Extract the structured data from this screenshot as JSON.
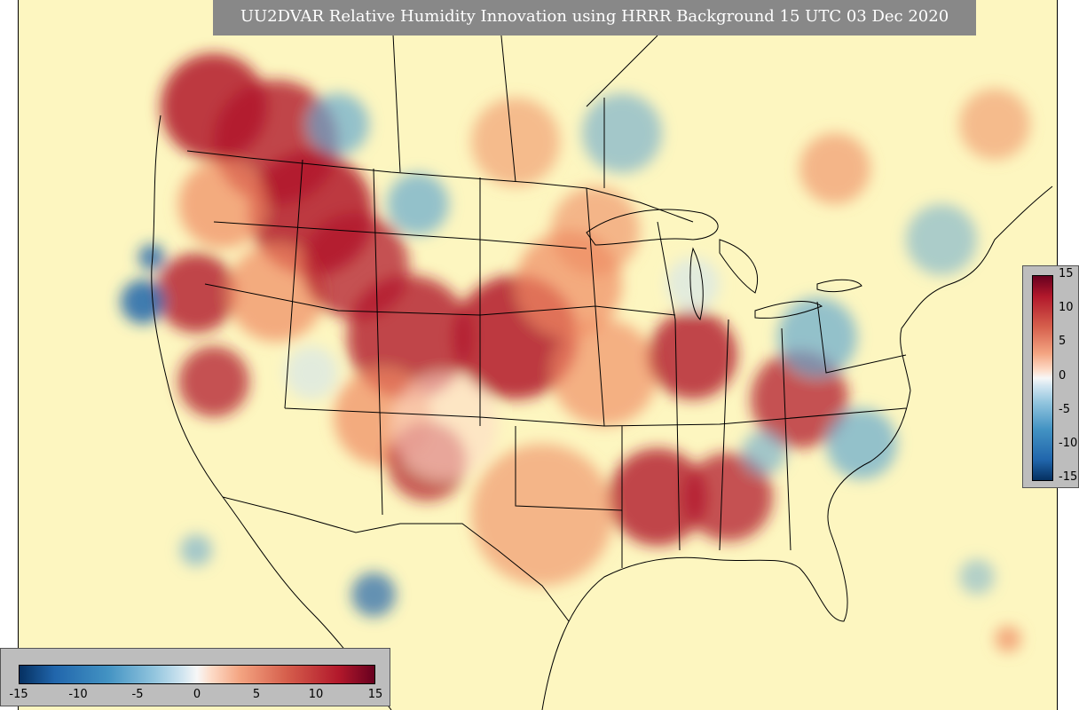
{
  "title": "UU2DVAR Relative Humidity Innovation using HRRR Background 15 UTC 03 Dec 2020",
  "colorbar": {
    "ticks_right": [
      "15",
      "10",
      "5",
      "0",
      "-5",
      "-10",
      "-15"
    ],
    "ticks_bottom": [
      "-15",
      "-10",
      "-5",
      "0",
      "5",
      "10",
      "15"
    ],
    "min": -15,
    "max": 15
  },
  "colors": {
    "background": "#fdf6c0",
    "strong_positive": "#b2182b",
    "positive": "#ef8a62",
    "weak_positive": "#fddbc7",
    "weak_negative": "#d1e5f0",
    "negative": "#67a9cf",
    "strong_negative": "#2166ac",
    "panel_gray": "#888888"
  }
}
